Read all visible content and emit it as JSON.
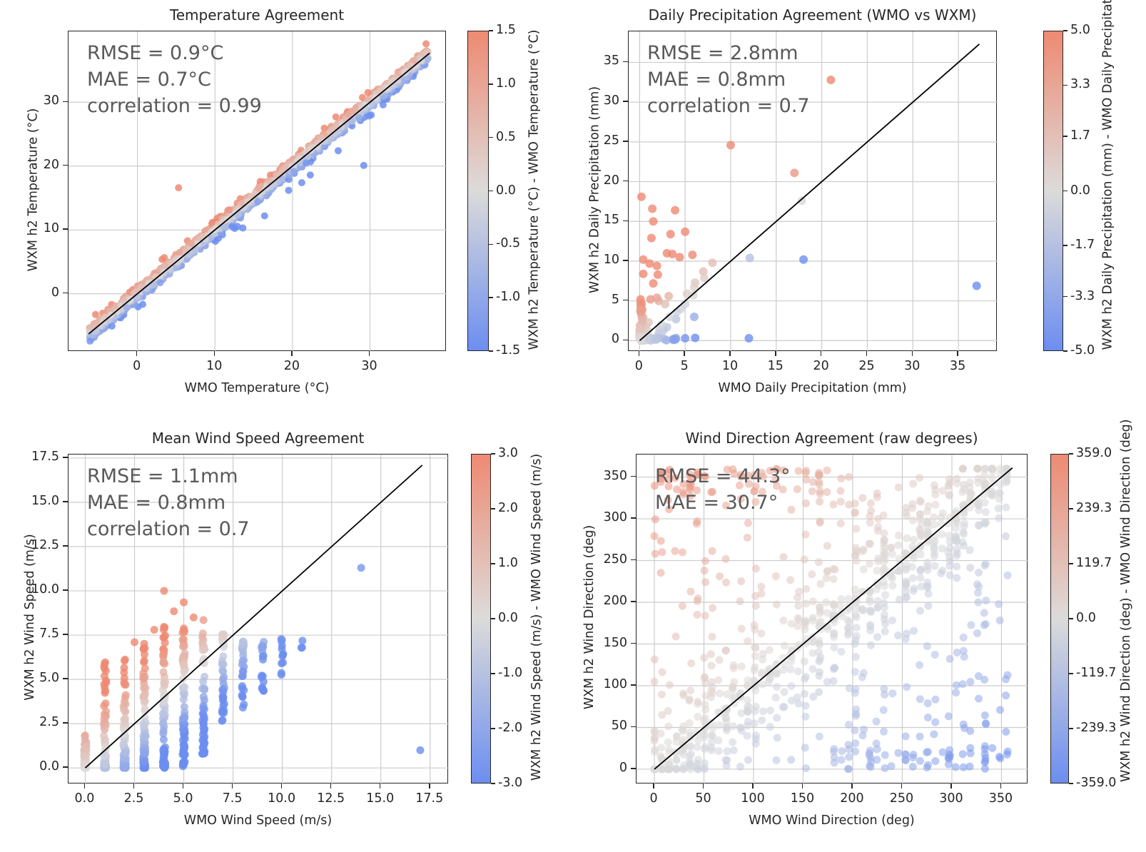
{
  "figure": {
    "background": "#ffffff"
  },
  "colors": {
    "cmap_positive": "#ee8a72",
    "cmap_mid": "#dcdbda",
    "cmap_negative": "#6c8ef0",
    "grid": "#cccccc",
    "identity_line": "#000000",
    "annotation_text": "#595959",
    "axis_border": "#262626"
  },
  "chart_data": [
    {
      "id": "temperature-agreement",
      "type": "scatter",
      "title": "Temperature Agreement",
      "xlabel": "WMO Temperature (°C)",
      "ylabel": "WXM h2 Temperature (°C)",
      "xlim": [
        -8.9,
        39.9
      ],
      "ylim": [
        -9.1,
        41.1
      ],
      "xticks": {
        "values": [
          0,
          10,
          20,
          30
        ],
        "labels": [
          "0",
          "10",
          "20",
          "30"
        ]
      },
      "yticks": {
        "values": [
          0,
          10,
          20,
          30
        ],
        "labels": [
          "0",
          "10",
          "20",
          "30"
        ]
      },
      "grid": true,
      "annotation": [
        "RMSE = 0.9°C",
        "MAE = 0.7°C",
        "correlation = 0.99"
      ],
      "identity_line": {
        "x1": -6.3,
        "y1": -6.3,
        "x2": 37.7,
        "y2": 37.7
      },
      "marker": {
        "radius": 5,
        "alpha": 0.85
      },
      "colorbar": {
        "label": "WXM h2 Temperature (°C) - WMO Temperature (°C)",
        "vmin": -1.5,
        "vmax": 1.5,
        "ticks": {
          "values": [
            1.5,
            1.0,
            0.5,
            0.0,
            -0.5,
            -1.0,
            -1.5
          ],
          "labels": [
            "1.5",
            "1.0",
            "0.5",
            "0.0",
            "-0.5",
            "-1.0",
            "-1.5"
          ]
        }
      },
      "outliers": [
        [
          5.3,
          16.6
        ],
        [
          29.2,
          20.1
        ],
        [
          22.3,
          18.6
        ],
        [
          21.2,
          17.4
        ],
        [
          16.4,
          12.2
        ],
        [
          13.6,
          10.3
        ],
        [
          25.9,
          22.4
        ],
        [
          19.5,
          16.2
        ]
      ],
      "synthesis": {
        "kind": "band",
        "seed": 7,
        "n": 2500,
        "x_min": -6.2,
        "x_max": 37.5,
        "x_pow": 1.12,
        "spread": 0.85,
        "tail_frac": 0.1,
        "tail_mult": 2.0
      }
    },
    {
      "id": "daily-precipitation-agreement",
      "type": "scatter",
      "title": "Daily Precipitation Agreement (WMO vs WXM)",
      "xlabel": "WMO Daily Precipitation (mm)",
      "ylabel": "WXM h2 Daily Precipitation (mm)",
      "xlim": [
        -1.2,
        39.3
      ],
      "ylim": [
        -1.4,
        38.9
      ],
      "xticks": {
        "values": [
          0,
          5,
          10,
          15,
          20,
          25,
          30,
          35
        ],
        "labels": [
          "0",
          "5",
          "10",
          "15",
          "20",
          "25",
          "30",
          "35"
        ]
      },
      "yticks": {
        "values": [
          0,
          5,
          10,
          15,
          20,
          25,
          30,
          35
        ],
        "labels": [
          "0",
          "5",
          "10",
          "15",
          "20",
          "25",
          "30",
          "35"
        ]
      },
      "grid": true,
      "annotation": [
        "RMSE = 2.8mm",
        "MAE = 0.8mm",
        "correlation = 0.7"
      ],
      "identity_line": {
        "x1": 0,
        "y1": 0,
        "x2": 37.3,
        "y2": 37.3
      },
      "marker": {
        "radius": 6,
        "alpha": 0.8
      },
      "colorbar": {
        "label": "WXM h2 Daily Precipitation (mm) - WMO Daily Precipitation (mm)",
        "vmin": -5.0,
        "vmax": 5.0,
        "ticks": {
          "values": [
            5.0,
            3.3,
            1.7,
            0.0,
            -1.7,
            -3.3,
            -5.0
          ],
          "labels": [
            "5.0",
            "3.3",
            "1.7",
            "0.0",
            "-1.7",
            "-3.3",
            "-5.0"
          ]
        }
      },
      "points": [
        [
          21,
          32.8
        ],
        [
          10,
          24.6
        ],
        [
          17,
          21.1
        ],
        [
          0.2,
          18.1
        ],
        [
          1.4,
          16.6
        ],
        [
          3.9,
          16.4
        ],
        [
          1.5,
          15.0
        ],
        [
          3.4,
          13.4
        ],
        [
          5.0,
          13.7
        ],
        [
          1.3,
          12.9
        ],
        [
          3.0,
          11.0
        ],
        [
          3.6,
          10.9
        ],
        [
          4.4,
          10.5
        ],
        [
          5.8,
          10.8
        ],
        [
          0.4,
          10.2
        ],
        [
          1.1,
          9.7
        ],
        [
          1.9,
          9.4
        ],
        [
          0.4,
          8.4
        ],
        [
          2.0,
          8.3
        ],
        [
          1.5,
          7.2
        ],
        [
          0.1,
          5.2
        ],
        [
          0.1,
          4.7
        ],
        [
          0.15,
          4.3
        ],
        [
          0.3,
          3.9
        ],
        [
          1.2,
          5.2
        ],
        [
          1.9,
          5.4
        ],
        [
          2.1,
          5.0
        ],
        [
          0.2,
          3.3
        ],
        [
          0.4,
          2.9
        ],
        [
          1.0,
          2.3
        ],
        [
          0.15,
          1.9
        ],
        [
          0.25,
          1.5
        ],
        [
          0.1,
          1.1
        ],
        [
          3.2,
          5.6
        ],
        [
          2.8,
          4.6
        ],
        [
          4.1,
          3.6
        ],
        [
          5.2,
          5.9
        ],
        [
          6.1,
          7.3
        ],
        [
          6.0,
          6.7
        ],
        [
          5.9,
          5.7
        ],
        [
          7.0,
          8.7
        ],
        [
          7.1,
          7.9
        ],
        [
          8.0,
          9.8
        ],
        [
          17.8,
          17.6
        ],
        [
          12.1,
          10.4
        ],
        [
          4.0,
          2.7
        ],
        [
          3.0,
          1.7
        ],
        [
          2.6,
          1.3
        ],
        [
          4.5,
          4.0
        ],
        [
          5.0,
          4.6
        ],
        [
          5.0,
          0.3
        ],
        [
          6.1,
          0.35
        ],
        [
          12.0,
          0.3
        ],
        [
          18.0,
          10.2
        ],
        [
          37.0,
          6.9
        ],
        [
          2.0,
          0.4
        ],
        [
          2.1,
          0.9
        ],
        [
          2.2,
          1.4
        ],
        [
          6.0,
          3.0
        ],
        [
          2.4,
          2.0
        ],
        [
          3.3,
          3.0
        ]
      ],
      "synthesis": {
        "kind": "cluster",
        "seed": 5,
        "n": 70,
        "x_scale": 1.5,
        "y_scale": 2.3,
        "axis_n": 18,
        "axis_y_max": 5.2,
        "floor_n": 14,
        "floor_x_max": 4.5
      }
    },
    {
      "id": "mean-wind-speed-agreement",
      "type": "scatter",
      "title": "Mean Wind Speed Agreement",
      "xlabel": "WMO Wind Speed (m/s)",
      "ylabel": "WXM h2 Wind Speed (m/s)",
      "xlim": [
        -0.85,
        18.45
      ],
      "ylim": [
        -0.92,
        17.7
      ],
      "xticks": {
        "values": [
          0,
          2.5,
          5,
          7.5,
          10,
          12.5,
          15,
          17.5
        ],
        "labels": [
          "0.0",
          "2.5",
          "5.0",
          "7.5",
          "10.0",
          "12.5",
          "15.0",
          "17.5"
        ]
      },
      "yticks": {
        "values": [
          0,
          2.5,
          5,
          7.5,
          10,
          12.5,
          15,
          17.5
        ],
        "labels": [
          "0.0",
          "2.5",
          "5.0",
          "7.5",
          "10.0",
          "12.5",
          "15.0",
          "17.5"
        ]
      },
      "grid": true,
      "annotation": [
        "RMSE = 1.1mm",
        "MAE = 0.8mm",
        "correlation = 0.7"
      ],
      "identity_line": {
        "x1": 0,
        "y1": 0,
        "x2": 17.1,
        "y2": 17.1
      },
      "marker": {
        "radius": 5.5,
        "alpha": 0.8
      },
      "colorbar": {
        "label": "WXM h2 Wind Speed (m/s) - WMO Wind Speed (m/s)",
        "vmin": -3.0,
        "vmax": 3.0,
        "ticks": {
          "values": [
            3.0,
            2.0,
            1.0,
            0.0,
            -1.0,
            -2.0,
            -3.0
          ],
          "labels": [
            "3.0",
            "2.0",
            "1.0",
            "0.0",
            "-1.0",
            "-2.0",
            "-3.0"
          ]
        }
      },
      "outliers": [
        [
          14,
          11.3
        ],
        [
          17,
          1.0
        ],
        [
          4,
          10.0
        ],
        [
          5,
          9.35
        ],
        [
          4.5,
          8.85
        ],
        [
          5.5,
          8.5
        ],
        [
          6,
          8.35
        ],
        [
          3.5,
          7.8
        ],
        [
          2.5,
          7.1
        ]
      ],
      "synthesis": {
        "kind": "columns",
        "seed": 11,
        "jitter": 0.06,
        "columns": [
          {
            "x": 0,
            "n": 70,
            "y0": 0,
            "y1": 1.9,
            "pow": 2.2
          },
          {
            "x": 1,
            "n": 85,
            "y0": 0,
            "y1": 6.0,
            "pow": 2.6
          },
          {
            "x": 2,
            "n": 95,
            "y0": 0,
            "y1": 6.6,
            "pow": 2.2
          },
          {
            "x": 3,
            "n": 85,
            "y0": 0,
            "y1": 7.4,
            "pow": 1.9
          },
          {
            "x": 4,
            "n": 80,
            "y0": 0,
            "y1": 8.0,
            "pow": 1.8
          },
          {
            "x": 5,
            "n": 75,
            "y0": 0,
            "y1": 7.9,
            "pow": 1.6
          },
          {
            "x": 6,
            "n": 55,
            "y0": 0.8,
            "y1": 8.0,
            "pow": 1.4
          },
          {
            "x": 7,
            "n": 38,
            "y0": 2.2,
            "y1": 7.6,
            "pow": 1.0
          },
          {
            "x": 8,
            "n": 26,
            "y0": 3.4,
            "y1": 7.3,
            "pow": 1.0
          },
          {
            "x": 9,
            "n": 18,
            "y0": 4.2,
            "y1": 7.3,
            "pow": 1.0
          },
          {
            "x": 10,
            "n": 12,
            "y0": 5.0,
            "y1": 7.5,
            "pow": 1.0
          },
          {
            "x": 11,
            "n": 3,
            "y0": 6.7,
            "y1": 7.2,
            "pow": 1.0
          }
        ]
      }
    },
    {
      "id": "wind-direction-agreement",
      "type": "scatter",
      "title": "Wind Direction Agreement (raw degrees)",
      "xlabel": "WMO Wind Direction (deg)",
      "ylabel": "WXM h2 Wind Direction (deg)",
      "xlim": [
        -18,
        377
      ],
      "ylim": [
        -18,
        377
      ],
      "xticks": {
        "values": [
          0,
          50,
          100,
          150,
          200,
          250,
          300,
          350
        ],
        "labels": [
          "0",
          "50",
          "100",
          "150",
          "200",
          "250",
          "300",
          "350"
        ]
      },
      "yticks": {
        "values": [
          0,
          50,
          100,
          150,
          200,
          250,
          300,
          350
        ],
        "labels": [
          "0",
          "50",
          "100",
          "150",
          "200",
          "250",
          "300",
          "350"
        ]
      },
      "grid": true,
      "annotation": [
        "RMSE = 44.3°",
        "MAE = 30.7°"
      ],
      "identity_line": {
        "x1": 0,
        "y1": 0,
        "x2": 361,
        "y2": 361
      },
      "marker": {
        "radius": 5.5,
        "alpha": 0.55
      },
      "colorbar": {
        "label": "WXM h2 Wind Direction (deg) - WMO Wind Direction (deg)",
        "vmin": -359.0,
        "vmax": 359.0,
        "ticks": {
          "values": [
            359.0,
            239.3,
            119.7,
            0.0,
            -119.7,
            -239.3,
            -359.0
          ],
          "labels": [
            "359.0",
            "239.3",
            "119.7",
            "0.0",
            "-119.7",
            "-239.3",
            "-359.0"
          ]
        }
      },
      "synthesis": {
        "kind": "direction",
        "seed": 13,
        "x_min": 0,
        "x_max": 361,
        "step": 7.25,
        "n_min": 9,
        "n_max": 34,
        "diag_spread": 110,
        "uniform_frac": 0.28,
        "wrap_frac": 0.12,
        "tight_frac": 0.1
      }
    }
  ]
}
